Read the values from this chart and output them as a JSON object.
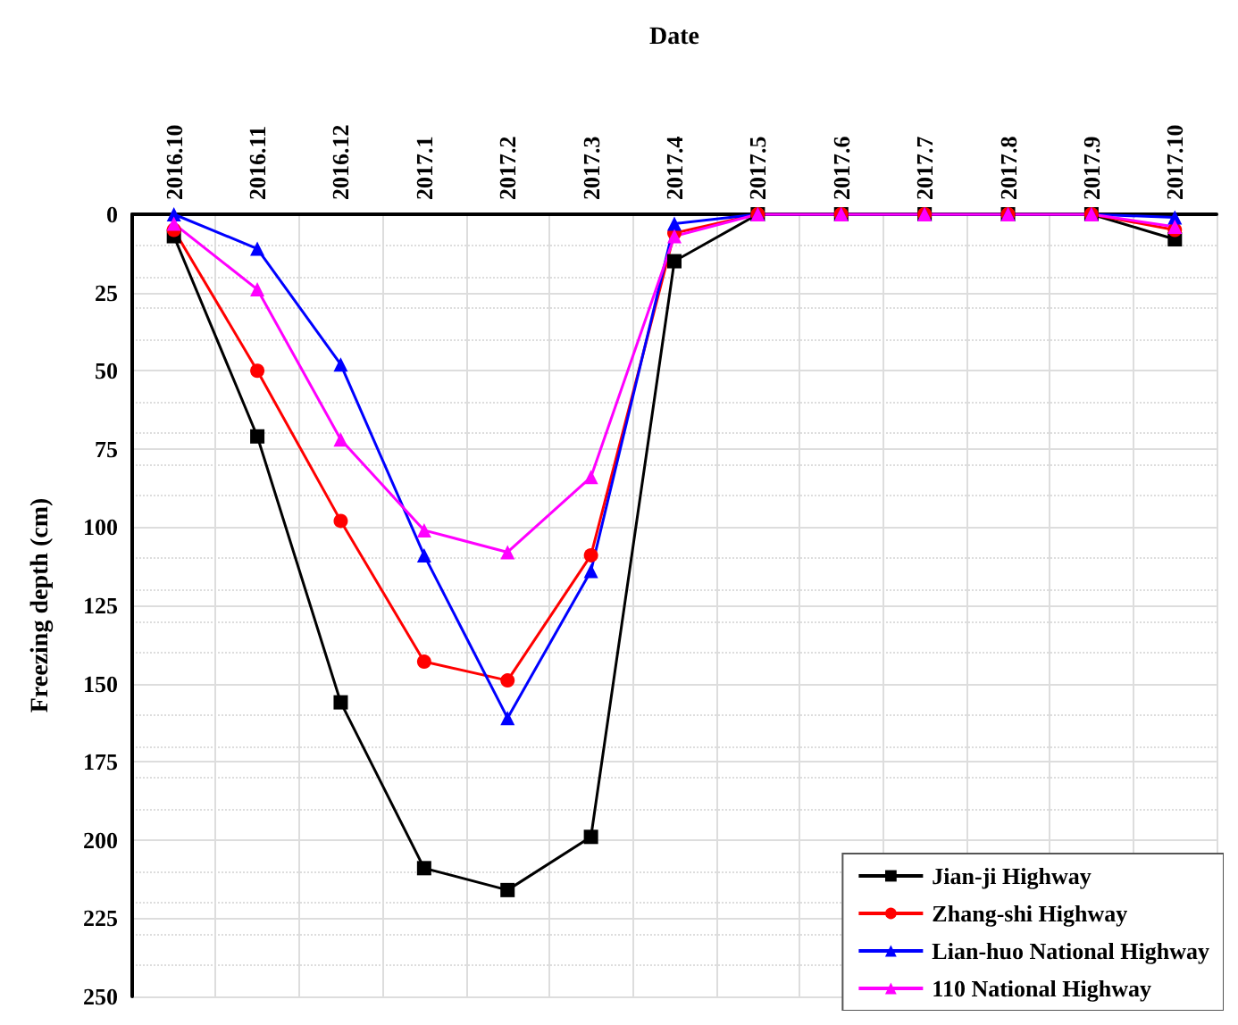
{
  "chart_data": {
    "type": "line",
    "xlabel": "Date",
    "ylabel": "Freezing depth (cm)",
    "categories": [
      "2016.10",
      "2016.11",
      "2016.12",
      "2017.1",
      "2017.2",
      "2017.3",
      "2017.4",
      "2017.5",
      "2017.6",
      "2017.7",
      "2017.8",
      "2017.9",
      "2017.10"
    ],
    "series": [
      {
        "name": "Jian-ji Highway",
        "color": "#000000",
        "marker": "square",
        "values": [
          7,
          71,
          156,
          209,
          216,
          199,
          15,
          0,
          0,
          0,
          0,
          0,
          8
        ]
      },
      {
        "name": "Zhang-shi Highway",
        "color": "#ff0000",
        "marker": "circle",
        "values": [
          5,
          50,
          98,
          143,
          149,
          109,
          6,
          0,
          0,
          0,
          0,
          0,
          5
        ]
      },
      {
        "name": "Lian-huo National Highway",
        "color": "#0000ff",
        "marker": "triangle",
        "values": [
          0,
          11,
          48,
          109,
          161,
          114,
          3,
          0,
          0,
          0,
          0,
          0,
          1
        ]
      },
      {
        "name": "110 National Highway",
        "color": "#ff00ff",
        "marker": "triangle",
        "values": [
          3,
          24,
          72,
          101,
          108,
          84,
          7,
          0,
          0,
          0,
          0,
          0,
          4
        ]
      }
    ],
    "ylim": [
      250,
      0
    ],
    "yticks": [
      0,
      25,
      50,
      75,
      100,
      125,
      150,
      175,
      200,
      225,
      250
    ],
    "grid": true,
    "legend": "bottom right",
    "line_style": "solid"
  }
}
